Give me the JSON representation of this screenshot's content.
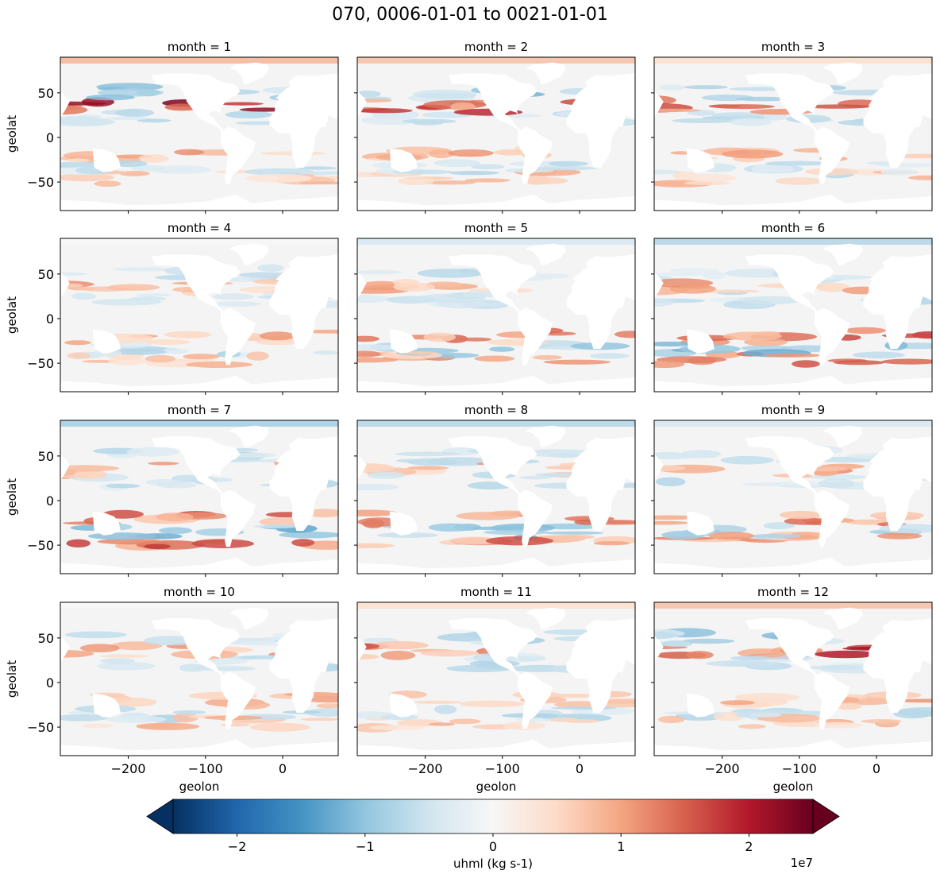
{
  "chart_data": {
    "type": "heatmap",
    "title": "070, 0006-01-01 to 0021-01-01",
    "panel_title_prefix": "month = ",
    "months": [
      1,
      2,
      3,
      4,
      5,
      6,
      7,
      8,
      9,
      10,
      11,
      12
    ],
    "grid": {
      "rows": 4,
      "cols": 3
    },
    "xlabel": "geolon",
    "ylabel": "geolat",
    "xlim": [
      -288,
      72
    ],
    "ylim": [
      -82,
      90
    ],
    "xticks": [
      -200,
      -100,
      0
    ],
    "xtick_labels": [
      "−200",
      "−100",
      "0"
    ],
    "yticks": [
      50,
      0,
      -50
    ],
    "ytick_labels": [
      "50",
      "0",
      "−50"
    ],
    "colorbar": {
      "label": "uhml (kg s-1)",
      "multiplier": "1e7",
      "min": -2.5,
      "max": 2.5,
      "ticks": [
        -2,
        -1,
        0,
        1,
        2
      ],
      "tick_labels": [
        "−2",
        "−1",
        "0",
        "1",
        "2"
      ],
      "extend": "both",
      "colormap": "RdBu_r",
      "colors": [
        "#053061",
        "#2166ac",
        "#4393c3",
        "#92c5de",
        "#d1e5f0",
        "#f7f7f7",
        "#fddbc7",
        "#f4a582",
        "#d6604d",
        "#b2182b",
        "#67001f"
      ]
    }
  }
}
